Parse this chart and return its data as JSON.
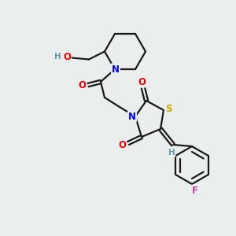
{
  "bg_color": "#eaeeec",
  "atom_colors": {
    "C": "#000000",
    "N": "#0000ee",
    "O": "#ee0000",
    "S": "#ccaa00",
    "F": "#cc44aa",
    "H": "#6699aa"
  },
  "bond_color": "#1a1a1a",
  "lw": 1.6
}
